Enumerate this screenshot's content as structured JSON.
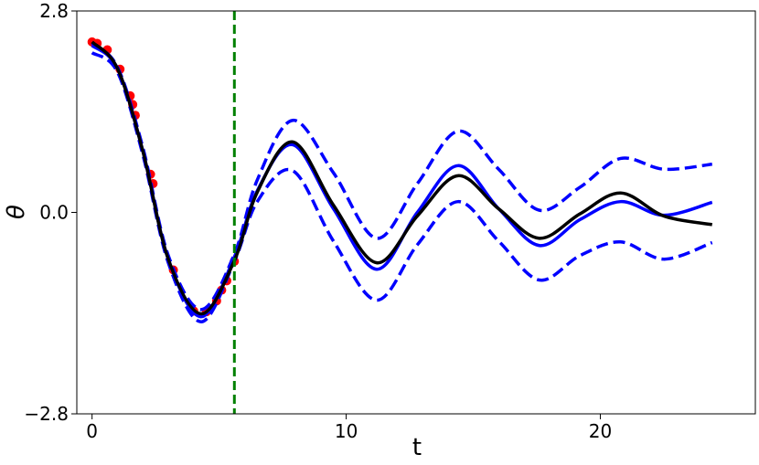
{
  "chart_data": {
    "type": "line",
    "xlabel": "t",
    "ylabel": "θ",
    "xlim": [
      -0.6,
      26.1
    ],
    "ylim": [
      -2.8,
      2.8
    ],
    "xticks": [
      0,
      10,
      20
    ],
    "yticks": [
      {
        "value": -2.8,
        "label": "−2.8"
      },
      {
        "value": 0,
        "label": "0.0"
      },
      2.8
    ],
    "x": [
      0,
      1,
      2,
      3,
      4.3,
      5.6,
      6.5,
      7.9,
      9.5,
      11.2,
      12.8,
      14.4,
      16.0,
      17.6,
      19.2,
      20.8,
      22.5,
      24.4
    ],
    "series": [
      {
        "color": "#0000ff",
        "dashed": true,
        "values": [
          2.35,
          2.02,
          0.9,
          -0.6,
          -1.35,
          -0.58,
          0.45,
          1.28,
          0.55,
          -0.36,
          0.4,
          1.13,
          0.6,
          0.03,
          0.35,
          0.75,
          0.6,
          0.67
        ]
      },
      {
        "color": "#0000ff",
        "dashed": true,
        "values": [
          2.22,
          1.95,
          0.8,
          -0.7,
          -1.52,
          -0.68,
          0.15,
          0.58,
          -0.4,
          -1.22,
          -0.45,
          0.15,
          -0.4,
          -0.94,
          -0.6,
          -0.41,
          -0.65,
          -0.42
        ]
      },
      {
        "color": "#0000ff",
        "dashed": false,
        "values": [
          2.32,
          2.0,
          0.85,
          -0.65,
          -1.45,
          -0.62,
          0.3,
          0.94,
          0.05,
          -0.79,
          0.0,
          0.65,
          0.05,
          -0.46,
          -0.1,
          0.15,
          -0.04,
          0.14
        ]
      },
      {
        "color": "#000000",
        "dashed": false,
        "values": [
          2.37,
          2.0,
          0.85,
          -0.65,
          -1.41,
          -0.67,
          0.28,
          0.98,
          0.1,
          -0.7,
          -0.05,
          0.51,
          0.05,
          -0.36,
          -0.02,
          0.27,
          -0.05,
          -0.17
        ]
      }
    ],
    "points": {
      "color": "#ff0000",
      "x": [
        0,
        0.2,
        0.6,
        1.1,
        1.5,
        1.6,
        1.7,
        2.3,
        2.4,
        3.2,
        4.0,
        4.5,
        4.9,
        5.1,
        5.3,
        5.6
      ],
      "y": [
        2.37,
        2.35,
        2.26,
        1.99,
        1.62,
        1.5,
        1.35,
        0.53,
        0.4,
        -0.8,
        -1.37,
        -1.38,
        -1.23,
        -1.08,
        -0.95,
        -0.68
      ]
    },
    "vline": {
      "x": 5.6,
      "color": "#008000"
    }
  }
}
